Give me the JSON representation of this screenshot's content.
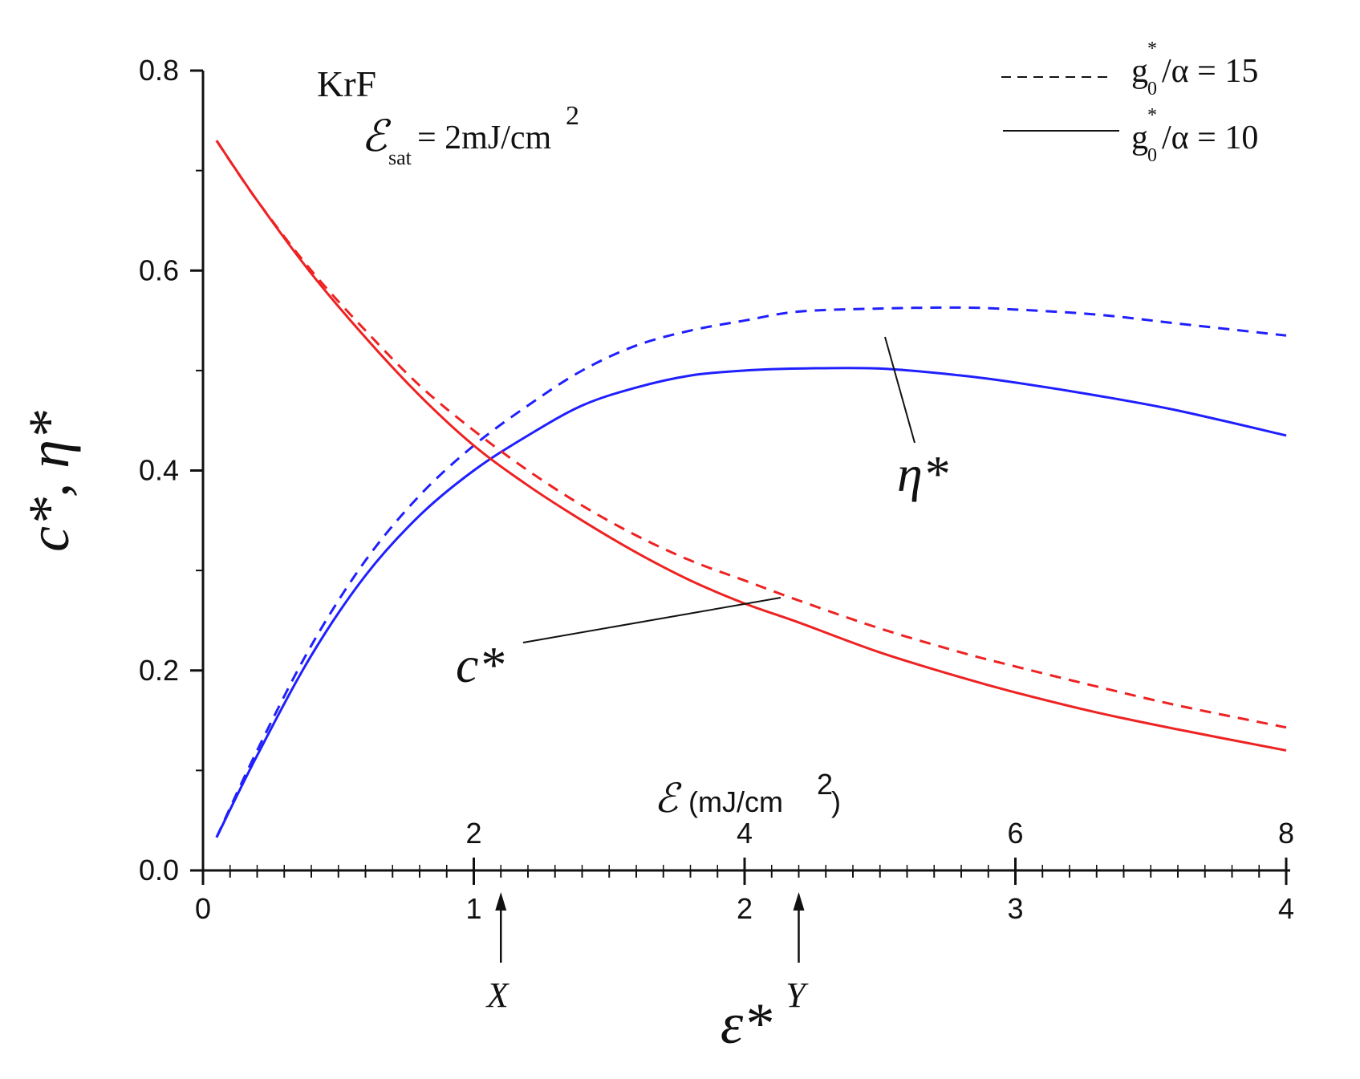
{
  "chart_data": {
    "type": "line",
    "title": "KrF",
    "annotation_sat": {
      "symbol": "ℰ",
      "subscript": "sat",
      "value": "= 2mJ/cm",
      "superscript": "2"
    },
    "ylabel": "c*, η*",
    "xlabel": "ε*",
    "top_axis_label": {
      "symbol": "ℰ",
      "text": "(mJ/cm",
      "superscript": "2",
      "close": ")"
    },
    "xlim": [
      0,
      4
    ],
    "ylim": [
      0,
      0.8
    ],
    "x_ticks": [
      "0",
      "1",
      "2",
      "3",
      "4"
    ],
    "x_ticks_values": [
      0,
      1,
      2,
      3,
      4
    ],
    "y_ticks": [
      "0.0",
      "0.2",
      "0.4",
      "0.6",
      "0.8"
    ],
    "y_ticks_values": [
      0,
      0.2,
      0.4,
      0.6,
      0.8
    ],
    "top_ticks": [
      "2",
      "4",
      "6",
      "8"
    ],
    "top_ticks_values": [
      1,
      2,
      3,
      4
    ],
    "legend": [
      {
        "style": "dashed",
        "g": "g",
        "sub": "0",
        "sup": "*",
        "rest": "/α = 15"
      },
      {
        "style": "solid",
        "g": "g",
        "sub": "0",
        "sup": "*",
        "rest": "/α = 10"
      }
    ],
    "curve_labels": {
      "eta": "η*",
      "c": "c*"
    },
    "markers": [
      {
        "label": "X",
        "x": 1.1
      },
      {
        "label": "Y",
        "x": 2.2
      }
    ],
    "colors": {
      "eta": "#1f1fff",
      "c": "#ee2222",
      "axis": "#111111"
    },
    "series": [
      {
        "name": "η*, g0*/α = 15",
        "style": "dashed",
        "curve": "eta",
        "x": [
          0.05,
          0.2,
          0.4,
          0.6,
          0.8,
          1.0,
          1.2,
          1.4,
          1.6,
          1.8,
          2.0,
          2.2,
          2.5,
          2.8,
          3.0,
          3.3,
          3.6,
          4.0
        ],
        "y": [
          0.033,
          0.12,
          0.225,
          0.31,
          0.375,
          0.425,
          0.465,
          0.5,
          0.525,
          0.54,
          0.55,
          0.559,
          0.562,
          0.563,
          0.561,
          0.556,
          0.547,
          0.535
        ]
      },
      {
        "name": "η*, g0*/α = 10",
        "style": "solid",
        "curve": "eta",
        "x": [
          0.05,
          0.2,
          0.4,
          0.6,
          0.8,
          1.0,
          1.2,
          1.4,
          1.6,
          1.8,
          2.0,
          2.2,
          2.5,
          2.8,
          3.0,
          3.3,
          3.6,
          4.0
        ],
        "y": [
          0.033,
          0.115,
          0.215,
          0.295,
          0.355,
          0.4,
          0.435,
          0.465,
          0.483,
          0.495,
          0.5,
          0.502,
          0.502,
          0.495,
          0.488,
          0.475,
          0.46,
          0.435
        ]
      },
      {
        "name": "c*, g0*/α = 15",
        "style": "dashed",
        "curve": "c",
        "x": [
          0.05,
          0.2,
          0.4,
          0.6,
          0.8,
          1.0,
          1.2,
          1.4,
          1.6,
          1.8,
          2.0,
          2.2,
          2.5,
          2.8,
          3.0,
          3.3,
          3.6,
          4.0
        ],
        "y": [
          0.73,
          0.67,
          0.6,
          0.54,
          0.485,
          0.44,
          0.4,
          0.365,
          0.335,
          0.31,
          0.29,
          0.27,
          0.242,
          0.218,
          0.204,
          0.184,
          0.165,
          0.143
        ]
      },
      {
        "name": "c*, g0*/α = 10",
        "style": "solid",
        "curve": "c",
        "x": [
          0.05,
          0.2,
          0.4,
          0.6,
          0.8,
          1.0,
          1.2,
          1.4,
          1.6,
          1.8,
          2.0,
          2.2,
          2.5,
          2.8,
          3.0,
          3.3,
          3.6,
          4.0
        ],
        "y": [
          0.73,
          0.67,
          0.597,
          0.533,
          0.475,
          0.425,
          0.385,
          0.35,
          0.318,
          0.29,
          0.267,
          0.248,
          0.218,
          0.193,
          0.178,
          0.158,
          0.141,
          0.12
        ]
      }
    ]
  }
}
